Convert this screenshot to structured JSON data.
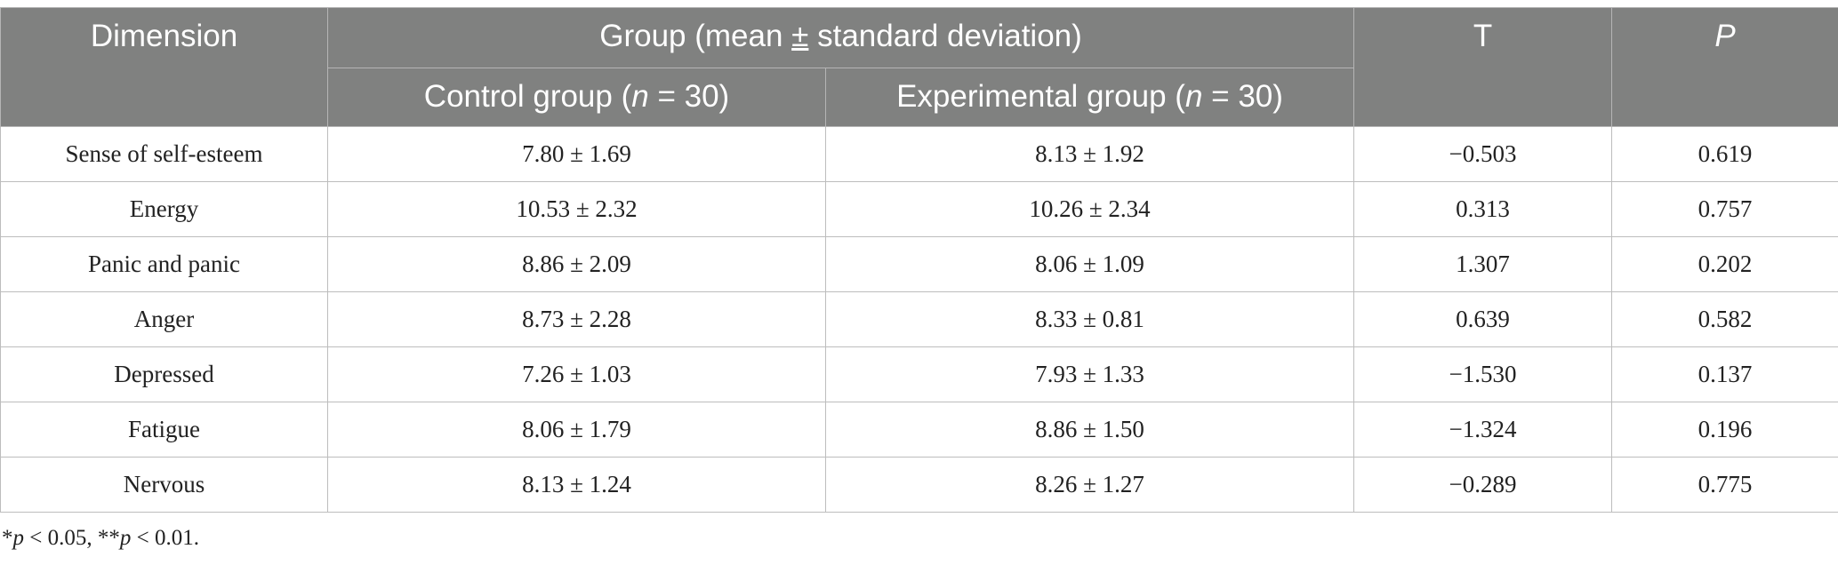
{
  "header": {
    "dimension": "Dimension",
    "group_prefix": "Group (mean ",
    "group_pm": "±",
    "group_suffix": " standard deviation)",
    "t": "T",
    "p": "P",
    "control_prefix": "Control group (",
    "control_n": "n",
    "control_suffix": " = 30)",
    "experimental_prefix": "Experimental group (",
    "experimental_n": "n",
    "experimental_suffix": " = 30)"
  },
  "rows": [
    {
      "dimension": "Sense of self-esteem",
      "control": "7.80 ± 1.69",
      "experimental": "8.13 ± 1.92",
      "t": "−0.503",
      "p": "0.619"
    },
    {
      "dimension": "Energy",
      "control": "10.53 ± 2.32",
      "experimental": "10.26 ± 2.34",
      "t": "0.313",
      "p": "0.757"
    },
    {
      "dimension": "Panic and panic",
      "control": "8.86 ± 2.09",
      "experimental": "8.06 ± 1.09",
      "t": "1.307",
      "p": "0.202"
    },
    {
      "dimension": "Anger",
      "control": "8.73 ± 2.28",
      "experimental": "8.33 ± 0.81",
      "t": "0.639",
      "p": "0.582"
    },
    {
      "dimension": "Depressed",
      "control": "7.26 ± 1.03",
      "experimental": "7.93 ± 1.33",
      "t": "−1.530",
      "p": "0.137"
    },
    {
      "dimension": "Fatigue",
      "control": "8.06 ± 1.79",
      "experimental": "8.86 ± 1.50",
      "t": "−1.324",
      "p": "0.196"
    },
    {
      "dimension": "Nervous",
      "control": "8.13 ± 1.24",
      "experimental": "8.26 ± 1.27",
      "t": "−0.289",
      "p": "0.775"
    }
  ],
  "footnote": {
    "star1": "*",
    "p1": "p",
    "text1": " < 0.05, **",
    "p2": "p",
    "text2": " < 0.01."
  }
}
